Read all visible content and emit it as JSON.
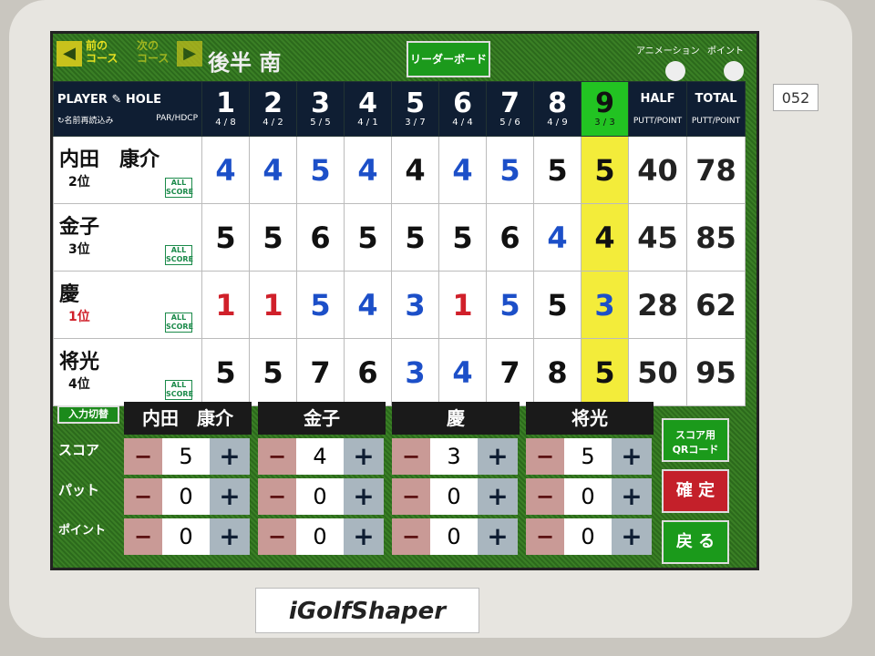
{
  "nav": {
    "prev_label": "前の\nコース",
    "next_label": "次の\nコース",
    "course": "後半 南",
    "leaderboard": "リーダーボード",
    "animation": "アニメーション",
    "point": "ポイント"
  },
  "header": {
    "player": "PLAYER",
    "hole": "HOLE",
    "reload": "名前再読込み",
    "par_hdcp": "PAR/HDCP",
    "half": "HALF",
    "total": "TOTAL",
    "putt_point": "PUTT/POINT"
  },
  "holes": [
    {
      "n": "1",
      "ph": "4 / 8"
    },
    {
      "n": "2",
      "ph": "4 / 2"
    },
    {
      "n": "3",
      "ph": "5 / 5"
    },
    {
      "n": "4",
      "ph": "4 / 1"
    },
    {
      "n": "5",
      "ph": "3 / 7"
    },
    {
      "n": "6",
      "ph": "4 / 4"
    },
    {
      "n": "7",
      "ph": "5 / 6"
    },
    {
      "n": "8",
      "ph": "4 / 9"
    },
    {
      "n": "9",
      "ph": "3 / 3"
    }
  ],
  "current_hole": "9",
  "colors": {
    "par": "#1c4fc8",
    "over": "#111111",
    "under": "#d0202a",
    "current": "#22c322",
    "highlight": "#f3ec3a"
  },
  "all_score_label": "ALL SCORE",
  "players": [
    {
      "name": "内田　康介",
      "rank": "2位",
      "scores": [
        4,
        4,
        5,
        4,
        4,
        4,
        5,
        5,
        5
      ],
      "half": "40",
      "total": "78"
    },
    {
      "name": "金子",
      "rank": "3位",
      "scores": [
        5,
        5,
        6,
        5,
        5,
        5,
        6,
        4,
        4
      ],
      "half": "45",
      "total": "85"
    },
    {
      "name": "慶",
      "rank": "1位",
      "scores": [
        1,
        1,
        5,
        4,
        3,
        1,
        5,
        5,
        3
      ],
      "half": "28",
      "total": "62"
    },
    {
      "name": "将光",
      "rank": "4位",
      "scores": [
        5,
        5,
        7,
        6,
        3,
        4,
        7,
        8,
        5
      ],
      "half": "50",
      "total": "95"
    }
  ],
  "input": {
    "switch": "入力切替",
    "labels": [
      "スコア",
      "パット",
      "ポイント"
    ],
    "players": [
      {
        "name": "内田　康介",
        "values": [
          "5",
          "0",
          "0"
        ]
      },
      {
        "name": "金子",
        "values": [
          "4",
          "0",
          "0"
        ]
      },
      {
        "name": "慶",
        "values": [
          "3",
          "0",
          "0"
        ]
      },
      {
        "name": "将光",
        "values": [
          "5",
          "0",
          "0"
        ]
      }
    ],
    "qr": "スコア用\nQRコード",
    "confirm": "確 定",
    "back": "戻 る"
  },
  "brand": "iGolfShaper",
  "device_tag": "052"
}
